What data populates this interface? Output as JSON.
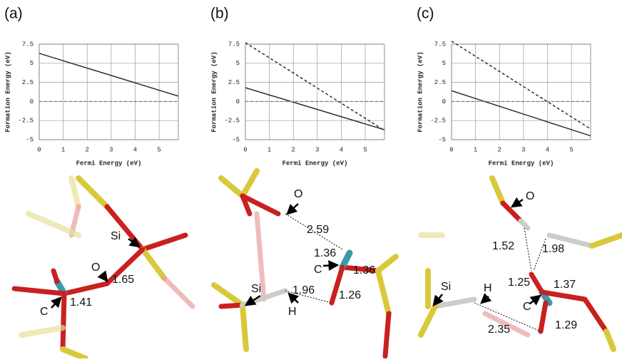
{
  "chart_data": [
    {
      "type": "line",
      "label": "(a)",
      "xlabel": "Fermi Energy (eV)",
      "ylabel": "Formation Energy (eV)",
      "x": [
        0,
        5.8
      ],
      "xlim": [
        0,
        5.8
      ],
      "xticks": [
        0,
        1,
        2,
        3,
        4,
        5
      ],
      "ylim": [
        -5,
        7.5
      ],
      "yticks": [
        -5,
        -2.5,
        0,
        2.5,
        5,
        7.5
      ],
      "grid": true,
      "series": [
        {
          "color": "#222222",
          "dash": "solid",
          "values": [
            6.3,
            0.7
          ]
        },
        {
          "color": "#888888",
          "dash": "dashed",
          "values": [
            0,
            0
          ]
        }
      ]
    },
    {
      "type": "line",
      "label": "(b)",
      "xlabel": "Fermi Energy (eV)",
      "ylabel": "Formation Energy (eV)",
      "x": [
        0,
        5.8
      ],
      "xlim": [
        0,
        5.8
      ],
      "xticks": [
        0,
        1,
        2,
        3,
        4,
        5
      ],
      "ylim": [
        -5,
        7.5
      ],
      "yticks": [
        -5,
        -2.5,
        0,
        2.5,
        5,
        7.5
      ],
      "grid": true,
      "series": [
        {
          "color": "#222222",
          "dash": "dashed",
          "values": [
            7.7,
            -3.8
          ]
        },
        {
          "color": "#222222",
          "dash": "solid",
          "values": [
            1.8,
            -3.7
          ]
        },
        {
          "color": "#888888",
          "dash": "dashed",
          "values": [
            0,
            0
          ]
        }
      ]
    },
    {
      "type": "line",
      "label": "(c)",
      "xlabel": "Fermi Energy (eV)",
      "ylabel": "Formation Energy (eV)",
      "x": [
        0,
        5.8
      ],
      "xlim": [
        0,
        5.8
      ],
      "xticks": [
        0,
        1,
        2,
        3,
        4,
        5
      ],
      "ylim": [
        -5,
        7.5
      ],
      "yticks": [
        -5,
        -2.5,
        0,
        2.5,
        5,
        7.5
      ],
      "grid": true,
      "series": [
        {
          "color": "#222222",
          "dash": "dashed",
          "values": [
            7.9,
            -3.6
          ]
        },
        {
          "color": "#222222",
          "dash": "solid",
          "values": [
            1.4,
            -4.5
          ]
        },
        {
          "color": "#888888",
          "dash": "dashed",
          "values": [
            0,
            0
          ]
        }
      ]
    }
  ],
  "structures": [
    {
      "labels": [
        "Si",
        "O",
        "1.65",
        "C",
        "1.41"
      ]
    },
    {
      "labels": [
        "O",
        "2.59",
        "1.36",
        "C",
        "1.36",
        "Si",
        "1.96",
        "H",
        "1.26"
      ]
    },
    {
      "labels": [
        "O",
        "1.52",
        "1.98",
        "H",
        "Si",
        "1.25",
        "1.37",
        "C",
        "1.29",
        "2.35"
      ]
    }
  ]
}
